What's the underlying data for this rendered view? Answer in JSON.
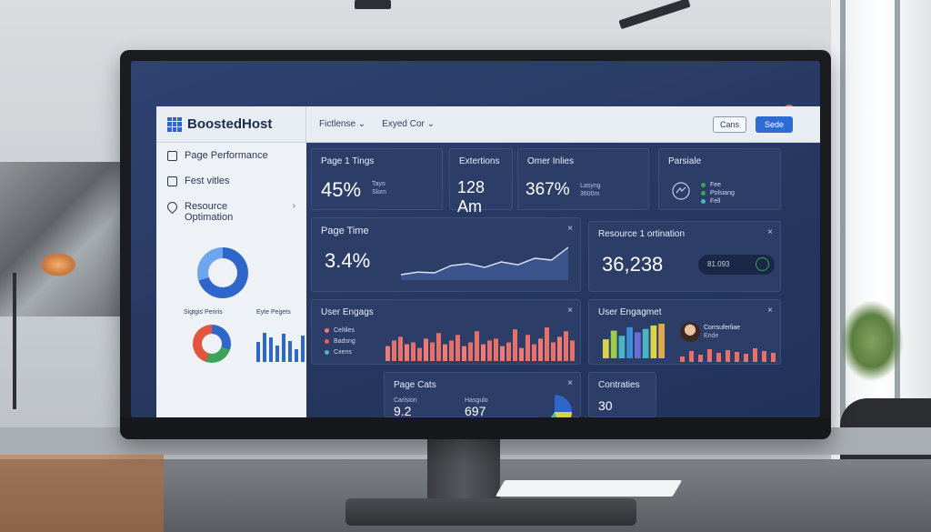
{
  "app": {
    "name": "BoostedHost"
  },
  "topbar": {
    "menu": [
      "Fictlense ⌄",
      "Exyed Cor ⌄"
    ],
    "buttons": {
      "ghost": "Cans",
      "primary": "Sede"
    }
  },
  "window_icons": [
    "‹",
    "›",
    "▭",
    "◷"
  ],
  "sidebar": {
    "items": [
      {
        "label": "Page Performance",
        "icon": "checkbox-icon"
      },
      {
        "label": "Fest vitles",
        "icon": "book-icon"
      },
      {
        "label": "Resource Optimation",
        "icon": "pin-icon",
        "chevron": "›"
      }
    ],
    "labels": [
      "Sigtgis Penris",
      "Eyte Pegets"
    ],
    "mini_bars": [
      0.6,
      0.9,
      0.75,
      0.5,
      0.85,
      0.65,
      0.4,
      0.8
    ]
  },
  "cards": {
    "page_timings": {
      "title": "Page 1 Tings",
      "value": "45%",
      "sub": "Tayo\nSlom"
    },
    "extentions": {
      "title": "Extertions",
      "value": "128 Am"
    },
    "other_times": {
      "title": "Omer Inlies",
      "value": "367%",
      "sub": "Lasyng\n3600m"
    },
    "partialte": {
      "title": "Parsiale",
      "legend": [
        "Fee",
        "Polsiang",
        "Fell"
      ]
    },
    "page_time": {
      "title": "Page Time",
      "value": "3.4%",
      "close": "×"
    },
    "resource": {
      "title": "Resource 1 ortination",
      "value": "36,238",
      "pill": "81.093",
      "close": "×"
    },
    "user_engage_1": {
      "title": "User Engags",
      "close": "×",
      "legend": [
        {
          "label": "Celtiles",
          "color": "#f07a76"
        },
        {
          "label": "Badsng",
          "color": "#e85f5c"
        },
        {
          "label": "Cxens",
          "color": "#49b6c6"
        }
      ]
    },
    "user_engage_2": {
      "title": "User Engagmet",
      "close": "×",
      "person": "Corrsuferliae",
      "person_sub": "Ende"
    },
    "page_cats": {
      "title": "Page Cats",
      "close": "×",
      "stat1_label": "Carlsion",
      "stat1_value": "9.2",
      "stat2_label": "Hasgulo",
      "stat2_value": "697"
    },
    "contraties": {
      "title": "Contraties",
      "value": "30"
    }
  },
  "charts": {
    "page_time_line": [
      0.15,
      0.22,
      0.2,
      0.4,
      0.45,
      0.35,
      0.5,
      0.42,
      0.6,
      0.55,
      0.9
    ],
    "engage_bars": [
      0.4,
      0.55,
      0.65,
      0.45,
      0.5,
      0.35,
      0.6,
      0.5,
      0.75,
      0.45,
      0.55,
      0.7,
      0.4,
      0.5,
      0.8,
      0.45,
      0.55,
      0.6,
      0.4,
      0.5,
      0.85,
      0.35,
      0.7,
      0.45,
      0.6,
      0.9,
      0.5,
      0.65,
      0.8,
      0.55
    ],
    "engage2_bars": [
      0.55,
      0.8,
      0.65,
      0.9,
      0.75,
      0.85,
      0.95,
      1.0
    ],
    "engage2_small": [
      0.3,
      0.6,
      0.4,
      0.7,
      0.5,
      0.65,
      0.55,
      0.45,
      0.75,
      0.6,
      0.5
    ]
  },
  "colors": {
    "accent": "#2e6bd3",
    "bar_red": "#e8706a",
    "panel": "#2c3d68"
  }
}
